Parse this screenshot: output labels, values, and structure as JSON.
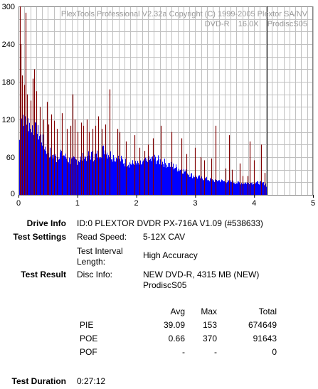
{
  "watermark": {
    "line1": "PlexTools Professional V2.32a Copyright (C) 1999-2005 Plextor SA/NV",
    "line2": "DVD-R    16.0X    ProdiscS05"
  },
  "chart_data": {
    "type": "bar",
    "xlim": [
      0,
      5
    ],
    "ylim": [
      0,
      300
    ],
    "xticks": [
      "0",
      "1",
      "2",
      "3",
      "4",
      "5"
    ],
    "yticks": [
      "0",
      "60",
      "120",
      "180",
      "240",
      "300"
    ],
    "grid": true,
    "end_marker_x": 4.22,
    "colors": {
      "pie": "#0000ff",
      "poe": "#800000",
      "grid": "#c0c0c0",
      "marker": "#000000"
    },
    "pie_profile": [
      [
        0.0,
        2
      ],
      [
        0.02,
        150
      ],
      [
        0.05,
        136
      ],
      [
        0.1,
        128
      ],
      [
        0.15,
        122
      ],
      [
        0.2,
        118
      ],
      [
        0.25,
        110
      ],
      [
        0.3,
        104
      ],
      [
        0.35,
        100
      ],
      [
        0.4,
        90
      ],
      [
        0.45,
        78
      ],
      [
        0.5,
        72
      ],
      [
        0.55,
        68
      ],
      [
        0.6,
        64
      ],
      [
        0.65,
        60
      ],
      [
        0.7,
        72
      ],
      [
        0.75,
        68
      ],
      [
        0.8,
        62
      ],
      [
        0.85,
        58
      ],
      [
        0.9,
        56
      ],
      [
        1.0,
        58
      ],
      [
        1.1,
        62
      ],
      [
        1.2,
        66
      ],
      [
        1.3,
        64
      ],
      [
        1.4,
        72
      ],
      [
        1.45,
        75
      ],
      [
        1.5,
        70
      ],
      [
        1.6,
        64
      ],
      [
        1.7,
        60
      ],
      [
        1.8,
        54
      ],
      [
        1.9,
        52
      ],
      [
        2.0,
        50
      ],
      [
        2.1,
        52
      ],
      [
        2.2,
        56
      ],
      [
        2.3,
        60
      ],
      [
        2.4,
        56
      ],
      [
        2.5,
        52
      ],
      [
        2.6,
        48
      ],
      [
        2.7,
        44
      ],
      [
        2.8,
        40
      ],
      [
        2.9,
        34
      ],
      [
        3.0,
        30
      ],
      [
        3.1,
        28
      ],
      [
        3.2,
        26
      ],
      [
        3.3,
        24
      ],
      [
        3.4,
        24
      ],
      [
        3.5,
        22
      ],
      [
        3.6,
        22
      ],
      [
        3.7,
        20
      ],
      [
        3.8,
        20
      ],
      [
        3.9,
        20
      ],
      [
        4.0,
        20
      ],
      [
        4.1,
        20
      ],
      [
        4.2,
        18
      ],
      [
        4.22,
        0
      ]
    ],
    "poe_spikes": [
      [
        0.02,
        300
      ],
      [
        0.04,
        240
      ],
      [
        0.06,
        190
      ],
      [
        0.1,
        175
      ],
      [
        0.12,
        290
      ],
      [
        0.15,
        160
      ],
      [
        0.2,
        150
      ],
      [
        0.24,
        185
      ],
      [
        0.27,
        200
      ],
      [
        0.3,
        165
      ],
      [
        0.36,
        140
      ],
      [
        0.42,
        120
      ],
      [
        0.48,
        148
      ],
      [
        0.51,
        112
      ],
      [
        0.55,
        128
      ],
      [
        0.6,
        118
      ],
      [
        0.65,
        105
      ],
      [
        0.74,
        130
      ],
      [
        0.82,
        105
      ],
      [
        0.88,
        110
      ],
      [
        0.92,
        160
      ],
      [
        0.95,
        120
      ],
      [
        1.0,
        100
      ],
      [
        1.06,
        115
      ],
      [
        1.1,
        110
      ],
      [
        1.16,
        120
      ],
      [
        1.2,
        100
      ],
      [
        1.25,
        105
      ],
      [
        1.3,
        110
      ],
      [
        1.35,
        125
      ],
      [
        1.41,
        105
      ],
      [
        1.47,
        112
      ],
      [
        1.55,
        168
      ],
      [
        1.68,
        105
      ],
      [
        1.72,
        100
      ],
      [
        1.82,
        85
      ],
      [
        1.97,
        95
      ],
      [
        2.05,
        75
      ],
      [
        2.14,
        70
      ],
      [
        2.2,
        80
      ],
      [
        2.28,
        90
      ],
      [
        2.42,
        110
      ],
      [
        2.6,
        100
      ],
      [
        2.77,
        90
      ],
      [
        2.85,
        65
      ],
      [
        3.0,
        75
      ],
      [
        3.09,
        60
      ],
      [
        3.15,
        55
      ],
      [
        3.27,
        58
      ],
      [
        3.34,
        110
      ],
      [
        3.52,
        42
      ],
      [
        3.57,
        95
      ],
      [
        3.62,
        40
      ],
      [
        3.75,
        50
      ],
      [
        3.8,
        30
      ],
      [
        3.89,
        30
      ],
      [
        3.93,
        85
      ],
      [
        4.0,
        55
      ],
      [
        4.12,
        80
      ],
      [
        4.18,
        35
      ]
    ]
  },
  "info": {
    "drive_info_label": "Drive Info",
    "drive_info_value": "ID:0 PLEXTOR DVDR PX-716A V1.09 (#538633)",
    "test_settings_label": "Test Settings",
    "read_speed_label": "Read Speed:",
    "read_speed_value": "5-12X CAV",
    "interval_label_1": "Test Interval",
    "interval_label_2": "Length:",
    "interval_value": "High Accuracy",
    "test_result_label": "Test Result",
    "disc_info_label": "Disc Info:",
    "disc_info_line1": "NEW DVD-R, 4315 MB (NEW)",
    "disc_info_line2": "ProdiscS05",
    "duration_label": "Test Duration",
    "duration_value": "0:27:12"
  },
  "results": {
    "headers": {
      "avg": "Avg",
      "max": "Max",
      "total": "Total"
    },
    "rows": [
      {
        "name": "PIE",
        "avg": "39.09",
        "max": "153",
        "total": "674649"
      },
      {
        "name": "POE",
        "avg": "0.66",
        "max": "370",
        "total": "91643"
      },
      {
        "name": "POF",
        "avg": "-",
        "max": "-",
        "total": "0"
      }
    ]
  }
}
